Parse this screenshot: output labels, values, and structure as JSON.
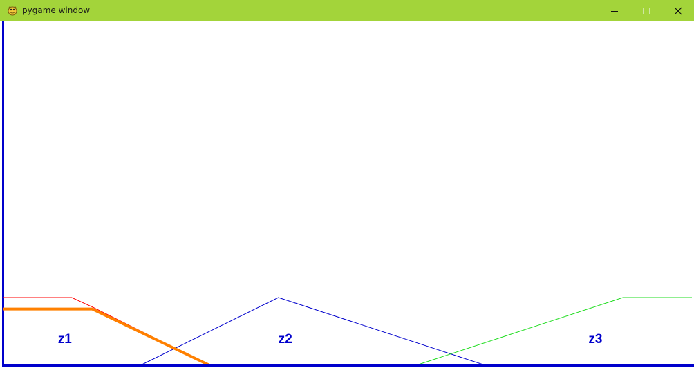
{
  "window": {
    "title": "pygame window",
    "icon": "pygame-snake-icon",
    "controls": [
      "minimize-icon",
      "maximize-icon",
      "close-icon"
    ],
    "titlebar_color": "#a3d43a"
  },
  "chart_data": {
    "type": "line",
    "x_range": [
      0,
      1000
    ],
    "y_range": [
      0,
      1
    ],
    "series": [
      {
        "color": "#ff0000",
        "points": [
          [
            0,
            1
          ],
          [
            100,
            1
          ],
          [
            130,
            0.86
          ],
          [
            300,
            0
          ]
        ]
      },
      {
        "color": "#0000cc",
        "points": [
          [
            200,
            0
          ],
          [
            400,
            1
          ],
          [
            700,
            0
          ]
        ]
      },
      {
        "color": "#22dd22",
        "points": [
          [
            600,
            0
          ],
          [
            900,
            1
          ],
          [
            1000,
            1
          ]
        ]
      },
      {
        "color": "#ff8000",
        "points": [
          [
            0,
            0.83
          ],
          [
            130,
            0.83
          ],
          [
            300,
            0
          ],
          [
            1000,
            0
          ]
        ],
        "bold": true
      }
    ],
    "labels": [
      {
        "text": "z1",
        "x": 90
      },
      {
        "text": "z2",
        "x": 410
      },
      {
        "text": "z3",
        "x": 860
      }
    ],
    "colors": {
      "axes": "#0000cc",
      "labels": "#0000cc"
    }
  }
}
